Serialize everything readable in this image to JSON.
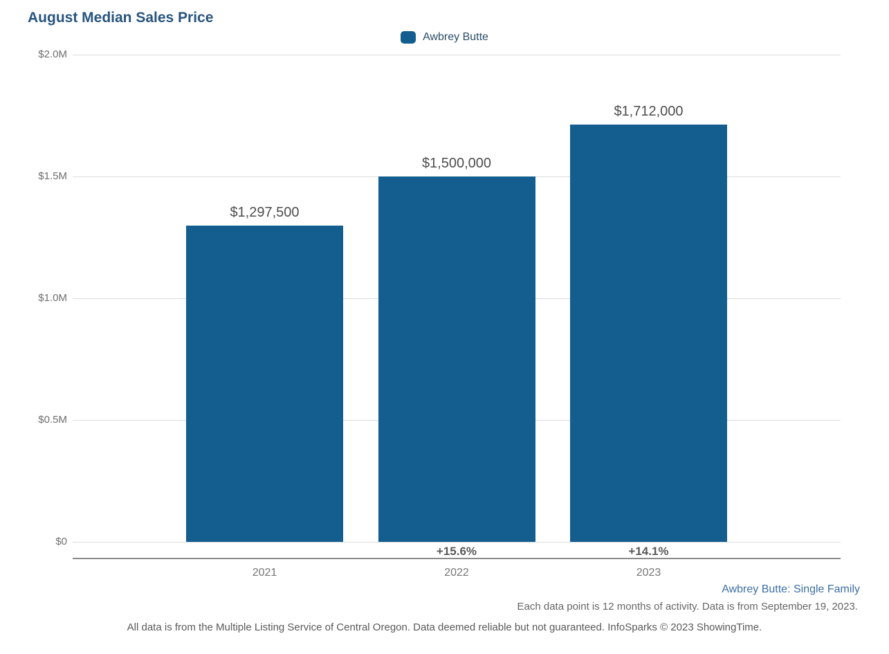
{
  "chart": {
    "title": "August Median Sales Price",
    "legend": [
      {
        "label": "Awbrey Butte",
        "color": "#135e8f"
      }
    ]
  },
  "chart_data": {
    "type": "bar",
    "title": "August Median Sales Price",
    "categories": [
      "2021",
      "2022",
      "2023"
    ],
    "series": [
      {
        "name": "Awbrey Butte",
        "values": [
          1297500,
          1500000,
          1712000
        ]
      }
    ],
    "value_labels": [
      "$1,297,500",
      "$1,500,000",
      "$1,712,000"
    ],
    "pct_change_labels": [
      "",
      "+15.6%",
      "+14.1%"
    ],
    "xlabel": "",
    "ylabel": "",
    "ylim": [
      0,
      2000000
    ],
    "ytick_values": [
      0,
      500000,
      1000000,
      1500000,
      2000000
    ],
    "ytick_labels": [
      "$0",
      "$0.5M",
      "$1.0M",
      "$1.5M",
      "$2.0M"
    ],
    "grid": true,
    "legend_position": "top-center",
    "bar_color": "#135e8f"
  },
  "footer": {
    "series_note": "Awbrey Butte: Single Family",
    "data_note": "Each data point is 12 months of activity. Data is from September 19, 2023.",
    "disclaimer": "All data is from the Multiple Listing Service of Central Oregon. Data deemed reliable but not guaranteed. InfoSparks © 2023 ShowingTime."
  },
  "colors": {
    "title": "#27547e",
    "bar": "#135e8f",
    "gridline": "#dcdcdc",
    "axis_line": "#8a8a8a",
    "value_label": "#4d4d4d",
    "tick_label": "#6e6e6e",
    "series_note": "#3d6fa5",
    "footnote": "#666666"
  }
}
